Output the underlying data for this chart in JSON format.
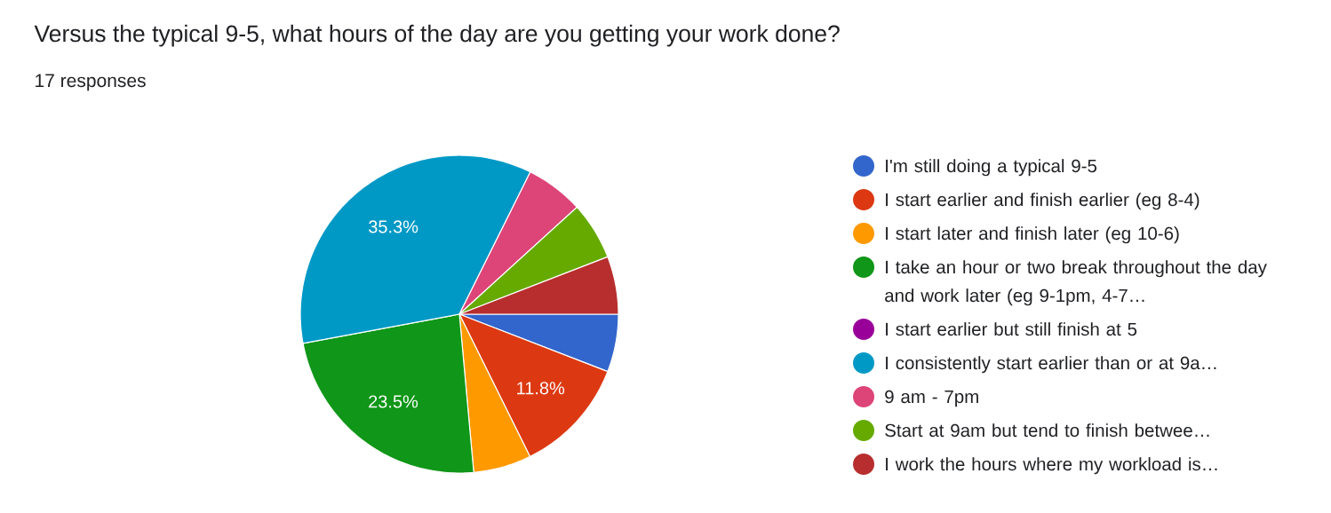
{
  "chart_data": {
    "type": "pie",
    "title": "Versus the typical 9-5, what hours of the day are you getting your work done?",
    "subtitle": "17 responses",
    "categories": [
      "I'm still doing a typical 9-5",
      "I start earlier and finish earlier (eg 8-4)",
      "I start later and finish later (eg 10-6)",
      "I take an hour or two break throughout the day and work later (eg 9-1pm, 4-7…",
      "I start earlier but still finish at 5",
      "I consistently start earlier than or at 9a…",
      "9 am - 7pm",
      "Start at 9am but tend to finish betwee…",
      "I work the hours where my workload is…"
    ],
    "values": [
      5.88,
      11.8,
      5.88,
      23.5,
      0,
      35.3,
      5.88,
      5.88,
      5.88
    ],
    "value_labels": [
      null,
      "11.8%",
      null,
      "23.5%",
      null,
      "35.3%",
      null,
      null,
      null
    ],
    "colors": [
      "#3366cc",
      "#dc3912",
      "#ff9900",
      "#109618",
      "#990099",
      "#0099c6",
      "#dd4477",
      "#66aa00",
      "#b82e2e"
    ],
    "legend": "right"
  }
}
